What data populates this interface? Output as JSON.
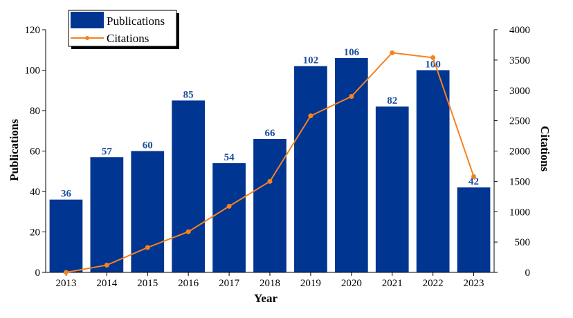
{
  "chart_data": {
    "type": "bar",
    "categories": [
      "2013",
      "2014",
      "2015",
      "2016",
      "2017",
      "2018",
      "2019",
      "2020",
      "2021",
      "2022",
      "2023"
    ],
    "series": [
      {
        "name": "Publications",
        "type": "bar",
        "axis": "left",
        "values": [
          36,
          57,
          60,
          85,
          54,
          66,
          102,
          106,
          82,
          100,
          42
        ]
      },
      {
        "name": "Citations",
        "type": "line",
        "axis": "right",
        "values": [
          0,
          120,
          410,
          670,
          1090,
          1500,
          2580,
          2900,
          3620,
          3540,
          1580
        ]
      }
    ],
    "xlabel": "Year",
    "ylabel": "Publications",
    "y2label": "Citations",
    "ylim": [
      0,
      120
    ],
    "y2lim": [
      0,
      4000
    ],
    "yticks": [
      "0",
      "20",
      "40",
      "60",
      "80",
      "100",
      "120"
    ],
    "y2ticks": [
      "0",
      "500",
      "1000",
      "1500",
      "2000",
      "2500",
      "3000",
      "3500",
      "4000"
    ],
    "legend": {
      "position": "top-left",
      "entries": [
        "Publications",
        "Citations"
      ]
    },
    "colors": {
      "bar": "#003591",
      "line": "#f5821f",
      "label": "#1f4e9c"
    }
  }
}
